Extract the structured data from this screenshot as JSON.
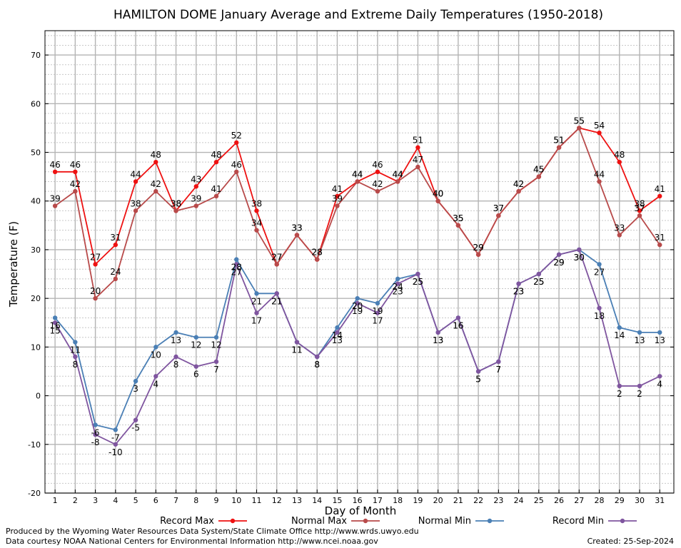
{
  "chart_data": {
    "type": "line",
    "title": "HAMILTON DOME January Average and Extreme Daily Temperatures (1950-2018)",
    "xlabel": "Day of Month",
    "ylabel": "Temperature (F)",
    "ylim": [
      -20,
      75
    ],
    "yticks": [
      "-20",
      "-10",
      "0",
      "10",
      "20",
      "30",
      "40",
      "50",
      "60",
      "70"
    ],
    "categories": [
      "1",
      "2",
      "3",
      "4",
      "5",
      "6",
      "7",
      "8",
      "9",
      "10",
      "11",
      "12",
      "13",
      "14",
      "15",
      "16",
      "17",
      "18",
      "19",
      "20",
      "21",
      "22",
      "23",
      "24",
      "25",
      "26",
      "27",
      "28",
      "29",
      "30",
      "31"
    ],
    "grid": true,
    "legend_position": "bottom",
    "series": [
      {
        "name": "Record Max",
        "color": "#ee1111",
        "values": [
          46,
          46,
          27,
          31,
          44,
          48,
          38,
          43,
          48,
          52,
          38,
          27,
          33,
          28,
          41,
          44,
          46,
          44,
          51,
          40,
          35,
          29,
          37,
          42,
          45,
          51,
          55,
          54,
          48,
          38,
          41
        ]
      },
      {
        "name": "Normal Max",
        "color": "#b84a4a",
        "values": [
          39,
          42,
          20,
          24,
          38,
          42,
          38,
          39,
          41,
          46,
          34,
          27,
          33,
          28,
          39,
          44,
          42,
          44,
          47,
          40,
          35,
          29,
          37,
          42,
          45,
          51,
          55,
          44,
          33,
          37,
          31
        ]
      },
      {
        "name": "Normal Min",
        "color": "#4a7fb5",
        "values": [
          16,
          11,
          -6,
          -7,
          3,
          10,
          13,
          12,
          12,
          28,
          21,
          21,
          11,
          8,
          14,
          20,
          19,
          24,
          25,
          13,
          16,
          5,
          7,
          23,
          25,
          29,
          30,
          27,
          14,
          13,
          13
        ]
      },
      {
        "name": "Record Min",
        "color": "#7f559f",
        "values": [
          15,
          8,
          -8,
          -10,
          -5,
          4,
          8,
          6,
          7,
          27,
          17,
          21,
          11,
          8,
          13,
          19,
          17,
          23,
          25,
          13,
          16,
          5,
          7,
          23,
          25,
          29,
          30,
          18,
          2,
          2,
          4
        ]
      }
    ]
  },
  "footer": {
    "produced_by": "Produced by the Wyoming Water Resources Data System/State Climate Office http://www.wrds.uwyo.edu",
    "courtesy": "Data courtesy NOAA National Centers for Environmental Information http://www.ncei.noaa.gov",
    "created": "Created:  25-Sep-2024"
  }
}
